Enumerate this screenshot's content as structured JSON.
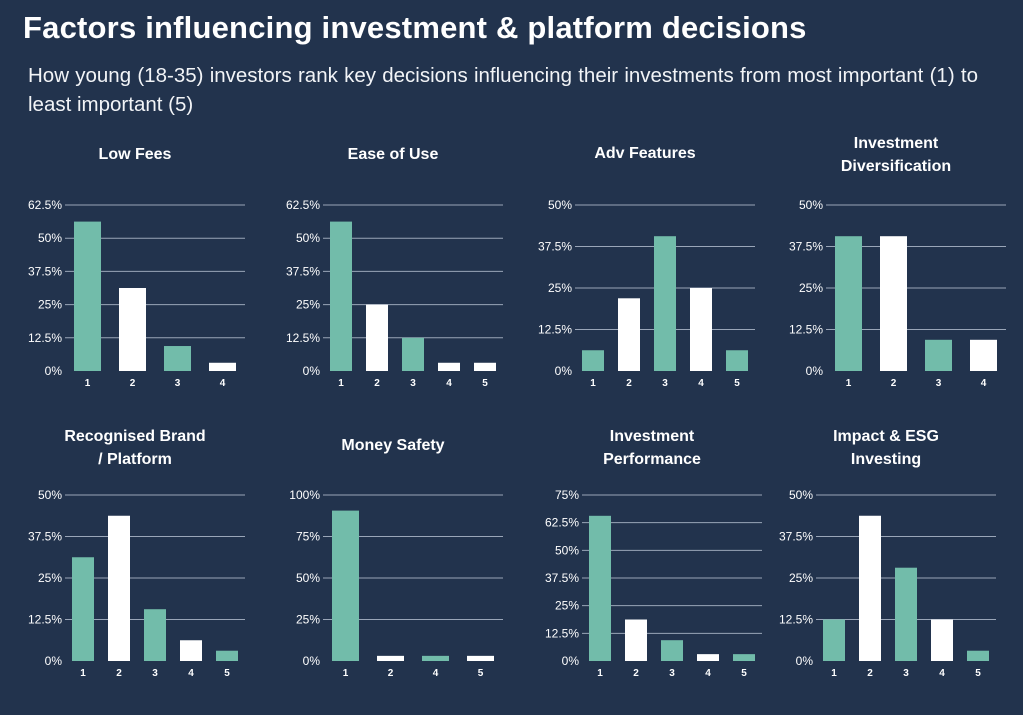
{
  "header": {
    "title": "Factors influencing investment & platform decisions",
    "subtitle": "How young (18-35) investors rank key decisions influencing their investments from most important (1) to least important (5)"
  },
  "colors": {
    "background": "#22334d",
    "teal": "#72bcaa",
    "white": "#ffffff",
    "grid": "#9aa6b8"
  },
  "chart_data": [
    {
      "type": "bar",
      "title": "Low Fees",
      "title_lines": [
        "Low Fees"
      ],
      "categories": [
        "1",
        "2",
        "3",
        "4"
      ],
      "values": [
        56.25,
        31.25,
        9.4,
        3.1
      ],
      "bar_colors": [
        "teal",
        "white",
        "teal",
        "white"
      ],
      "yticks": [
        0,
        12.5,
        25,
        37.5,
        50,
        62.5
      ],
      "ytick_labels": [
        "0%",
        "12.5%",
        "25%",
        "37.5%",
        "50%",
        "62.5%"
      ],
      "ylim": [
        0,
        62.5
      ],
      "unit": "%",
      "grid": true,
      "xlabel": "",
      "ylabel": ""
    },
    {
      "type": "bar",
      "title": "Ease of Use",
      "title_lines": [
        "Ease of Use"
      ],
      "categories": [
        "1",
        "2",
        "3",
        "4",
        "5"
      ],
      "values": [
        56.25,
        25,
        12.5,
        3.1,
        3.1
      ],
      "bar_colors": [
        "teal",
        "white",
        "teal",
        "white",
        "white"
      ],
      "yticks": [
        0,
        12.5,
        25,
        37.5,
        50,
        62.5
      ],
      "ytick_labels": [
        "0%",
        "12.5%",
        "25%",
        "37.5%",
        "50%",
        "62.5%"
      ],
      "ylim": [
        0,
        62.5
      ],
      "unit": "%",
      "grid": true,
      "xlabel": "",
      "ylabel": ""
    },
    {
      "type": "bar",
      "title": "Adv Features",
      "title_lines": [
        "Adv Features"
      ],
      "categories": [
        "1",
        "2",
        "3",
        "4",
        "5"
      ],
      "values": [
        6.25,
        21.9,
        40.6,
        25,
        6.25
      ],
      "bar_colors": [
        "teal",
        "white",
        "teal",
        "white",
        "teal"
      ],
      "yticks": [
        0,
        12.5,
        25,
        37.5,
        50
      ],
      "ytick_labels": [
        "0%",
        "12.5%",
        "25%",
        "37.5%",
        "50%"
      ],
      "ylim": [
        0,
        50
      ],
      "unit": "%",
      "grid": true,
      "xlabel": "",
      "ylabel": ""
    },
    {
      "type": "bar",
      "title": "Investment Diversification",
      "title_lines": [
        "Investment",
        "Diversification"
      ],
      "categories": [
        "1",
        "2",
        "3",
        "4"
      ],
      "values": [
        40.6,
        40.6,
        9.4,
        9.4
      ],
      "bar_colors": [
        "teal",
        "white",
        "teal",
        "white"
      ],
      "yticks": [
        0,
        12.5,
        25,
        37.5,
        50
      ],
      "ytick_labels": [
        "0%",
        "12.5%",
        "25%",
        "37.5%",
        "50%"
      ],
      "ylim": [
        0,
        50
      ],
      "unit": "%",
      "grid": true,
      "xlabel": "",
      "ylabel": ""
    },
    {
      "type": "bar",
      "title": "Recognised Brand / Platform",
      "title_lines": [
        "Recognised Brand",
        "/ Platform"
      ],
      "categories": [
        "1",
        "2",
        "3",
        "4",
        "5"
      ],
      "values": [
        31.25,
        43.75,
        15.6,
        6.25,
        3.1
      ],
      "bar_colors": [
        "teal",
        "white",
        "teal",
        "white",
        "teal"
      ],
      "yticks": [
        0,
        12.5,
        25,
        37.5,
        50
      ],
      "ytick_labels": [
        "0%",
        "12.5%",
        "25%",
        "37.5%",
        "50%"
      ],
      "ylim": [
        0,
        50
      ],
      "unit": "%",
      "grid": true,
      "xlabel": "",
      "ylabel": ""
    },
    {
      "type": "bar",
      "title": "Money Safety",
      "title_lines": [
        "Money Safety"
      ],
      "categories": [
        "1",
        "2",
        "4",
        "5"
      ],
      "values": [
        90.6,
        3.1,
        3.1,
        3.1
      ],
      "bar_colors": [
        "teal",
        "white",
        "teal",
        "white"
      ],
      "yticks": [
        0,
        25,
        50,
        75,
        100
      ],
      "ytick_labels": [
        "0%",
        "25%",
        "50%",
        "75%",
        "100%"
      ],
      "ylim": [
        0,
        100
      ],
      "unit": "%",
      "grid": true,
      "xlabel": "",
      "ylabel": ""
    },
    {
      "type": "bar",
      "title": "Investment Performance",
      "title_lines": [
        "Investment",
        "Performance"
      ],
      "categories": [
        "1",
        "2",
        "3",
        "4",
        "5"
      ],
      "values": [
        65.6,
        18.75,
        9.4,
        3.1,
        3.1
      ],
      "bar_colors": [
        "teal",
        "white",
        "teal",
        "white",
        "teal"
      ],
      "yticks": [
        0,
        12.5,
        25,
        37.5,
        50,
        62.5,
        75
      ],
      "ytick_labels": [
        "0%",
        "12.5%",
        "25%",
        "37.5%",
        "50%",
        "62.5%",
        "75%"
      ],
      "ylim": [
        0,
        75
      ],
      "unit": "%",
      "grid": true,
      "xlabel": "",
      "ylabel": ""
    },
    {
      "type": "bar",
      "title": "Impact & ESG Investing",
      "title_lines": [
        "Impact & ESG",
        "Investing"
      ],
      "categories": [
        "1",
        "2",
        "3",
        "4",
        "5"
      ],
      "values": [
        12.5,
        43.75,
        28.1,
        12.5,
        3.1
      ],
      "bar_colors": [
        "teal",
        "white",
        "teal",
        "white",
        "teal"
      ],
      "yticks": [
        0,
        12.5,
        25,
        37.5,
        50
      ],
      "ytick_labels": [
        "0%",
        "12.5%",
        "25%",
        "37.5%",
        "50%"
      ],
      "ylim": [
        0,
        50
      ],
      "unit": "%",
      "grid": true,
      "xlabel": "",
      "ylabel": ""
    }
  ]
}
